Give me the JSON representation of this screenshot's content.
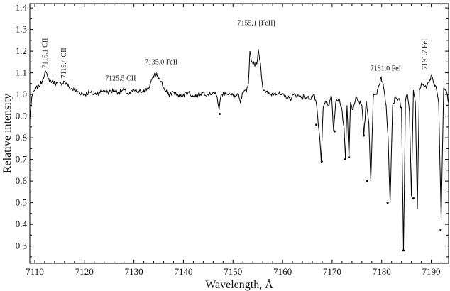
{
  "chart_data": {
    "type": "line",
    "title": "",
    "xlabel": "Wavelength, Å",
    "ylabel": "Relative intensity",
    "xlim": [
      7109,
      7193.5
    ],
    "ylim": [
      0.22,
      1.42
    ],
    "grid": false,
    "x_ticks": [
      7110,
      7120,
      7130,
      7140,
      7150,
      7160,
      7170,
      7180,
      7190
    ],
    "y_ticks": [
      0.3,
      0.4,
      0.5,
      0.6,
      0.7,
      0.8,
      0.9,
      1.0,
      1.1,
      1.2,
      1.3,
      1.4
    ],
    "x_tick_labels": [
      "7110",
      "7120",
      "7130",
      "7140",
      "7150",
      "7160",
      "7170",
      "7180",
      "7190"
    ],
    "y_tick_labels": [
      "0.3",
      "0.4",
      "0.5",
      "0.6",
      "0.7",
      "0.8",
      "0.9",
      "1.0",
      "1.1",
      "1.2",
      "1.3",
      "1.4"
    ],
    "series": [
      {
        "x": [
          7109,
          7109.4,
          7110,
          7110.8,
          7111.5,
          7112.1,
          7112.7,
          7113.5,
          7114.5,
          7115.3,
          7116,
          7117,
          7118,
          7119,
          7120,
          7121,
          7122,
          7123,
          7124,
          7125,
          7126,
          7127,
          7128,
          7129,
          7130,
          7131,
          7132,
          7133,
          7133.7,
          7134.3,
          7134.9,
          7135.5,
          7136.2,
          7137,
          7138,
          7139,
          7140,
          7141,
          7142,
          7143,
          7144,
          7145,
          7146,
          7146.8,
          7147.2,
          7147.6,
          7148.5,
          7149.5,
          7150.5,
          7151,
          7151.5,
          7152,
          7152.7,
          7153.1,
          7153.4,
          7153.8,
          7154.3,
          7154.8,
          7155.1,
          7155.5,
          7156,
          7156.6,
          7157.5,
          7158.5,
          7159.5,
          7160.5,
          7161.5,
          7162.5,
          7163.5,
          7164.5,
          7165.5,
          7166.3,
          7166.8,
          7167.2,
          7167.5,
          7167.8,
          7168.2,
          7168.8,
          7169.4,
          7169.9,
          7170.3,
          7170.7,
          7171.3,
          7171.9,
          7172.4,
          7172.7,
          7173,
          7173.4,
          7173.7,
          7174.2,
          7174.8,
          7175.4,
          7176,
          7176.4,
          7176.9,
          7177.4,
          7177.8,
          7178.3,
          7178.9,
          7179.4,
          7179.9,
          7180.4,
          7180.9,
          7181.3,
          7181.7,
          7182.2,
          7182.8,
          7183.4,
          7184,
          7184.4,
          7184.8,
          7185.2,
          7185.6,
          7186,
          7186.4,
          7186.8,
          7187.2,
          7187.6,
          7188,
          7188.5,
          7189,
          7189.6,
          7190.1,
          7190.6,
          7191.1,
          7191.5,
          7192,
          7192.5,
          7193,
          7193.5
        ],
        "y": [
          0.88,
          0.99,
          1.02,
          1.04,
          1.06,
          1.11,
          1.07,
          1.06,
          1.05,
          1.05,
          1.06,
          1.03,
          1.02,
          1.01,
          1.0,
          1.01,
          1.0,
          1.01,
          1.02,
          1.01,
          1.02,
          1.01,
          1.02,
          1.0,
          1.02,
          1.01,
          1.02,
          1.03,
          1.07,
          1.1,
          1.08,
          1.06,
          1.02,
          1.0,
          1.01,
          0.99,
          1.0,
          1.01,
          0.99,
          1.0,
          1.01,
          1.0,
          1.01,
          0.99,
          0.93,
          1.0,
          1.01,
          1.0,
          0.99,
          1.0,
          0.96,
          1.01,
          1.01,
          1.05,
          1.2,
          1.15,
          1.14,
          1.14,
          1.21,
          1.15,
          1.03,
          1.01,
          1.0,
          1.01,
          1.0,
          0.99,
          0.98,
          1.0,
          0.99,
          0.99,
          0.98,
          1.0,
          0.96,
          0.86,
          0.8,
          0.69,
          0.94,
          0.97,
          0.95,
          0.99,
          0.83,
          0.96,
          0.98,
          0.94,
          0.85,
          0.7,
          0.95,
          0.71,
          0.96,
          0.93,
          0.99,
          0.97,
          0.95,
          0.81,
          0.97,
          0.87,
          0.6,
          0.99,
          1.0,
          1.04,
          1.08,
          1.03,
          0.95,
          0.8,
          0.5,
          0.95,
          0.99,
          0.98,
          0.94,
          0.28,
          0.97,
          1.0,
          0.92,
          0.53,
          1.02,
          0.96,
          0.47,
          1.02,
          1.05,
          1.04,
          1.03,
          1.06,
          1.09,
          1.05,
          1.02,
          0.96,
          0.42,
          1.03,
          1.02,
          0.96
        ]
      }
    ],
    "markers": {
      "x": [
        7147.3,
        7166.8,
        7167.9,
        7170.5,
        7172.6,
        7173.4,
        7176.4,
        7177.1,
        7181.2,
        7184.4,
        7186.4,
        7191.9
      ],
      "y": [
        0.91,
        0.86,
        0.69,
        0.83,
        0.7,
        0.71,
        0.81,
        0.6,
        0.5,
        0.28,
        0.52,
        0.375
      ]
    },
    "annotations": [
      {
        "text": "7115.1 CII",
        "x": 7112.5,
        "y": 1.12,
        "rotate": -90
      },
      {
        "text": "7119.4 CII",
        "x": 7116.3,
        "y": 1.075,
        "rotate": -90
      },
      {
        "text": "7125.5 CII",
        "x": 7127.3,
        "y": 1.065,
        "rotate": 0
      },
      {
        "text": "7135.0 FeII",
        "x": 7135.5,
        "y": 1.14,
        "rotate": 0
      },
      {
        "text": "7155,1 [FeII]",
        "x": 7154.7,
        "y": 1.32,
        "rotate": 0
      },
      {
        "text": "7181.0 FeI",
        "x": 7180.8,
        "y": 1.11,
        "rotate": 0
      },
      {
        "text": "7191.7 FeI",
        "x": 7189.1,
        "y": 1.115,
        "rotate": -90
      }
    ]
  }
}
